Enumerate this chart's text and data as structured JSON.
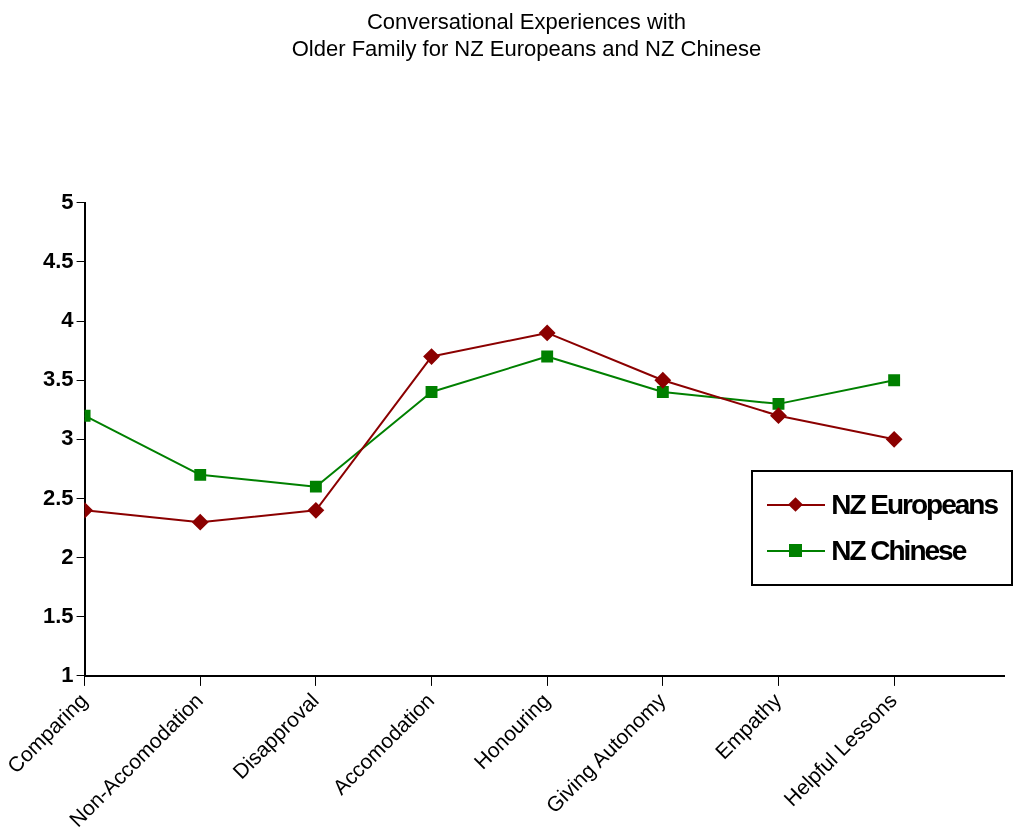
{
  "chart_data": {
    "type": "line",
    "title": "Conversational Experiences with\nOlder Family for NZ Europeans and NZ Chinese",
    "categories": [
      "Comparing",
      "Non-Accomodation",
      "Disapproval",
      "Accomodation",
      "Honouring",
      "Giving Autonomy",
      "Empathy",
      "Helpful Lessons"
    ],
    "series": [
      {
        "name": "NZ Europeans",
        "color": "#8b0000",
        "marker": "diamond",
        "values": [
          2.4,
          2.3,
          2.4,
          3.7,
          3.9,
          3.5,
          3.2,
          3.0
        ]
      },
      {
        "name": "NZ Chinese",
        "color": "#008000",
        "marker": "square",
        "values": [
          3.2,
          2.7,
          2.6,
          3.4,
          3.7,
          3.4,
          3.3,
          3.5
        ]
      }
    ],
    "ylim": [
      1,
      5
    ],
    "yticks": [
      1,
      1.5,
      2,
      2.5,
      3,
      3.5,
      4,
      4.5,
      5
    ],
    "grid": false,
    "legend": "right"
  }
}
